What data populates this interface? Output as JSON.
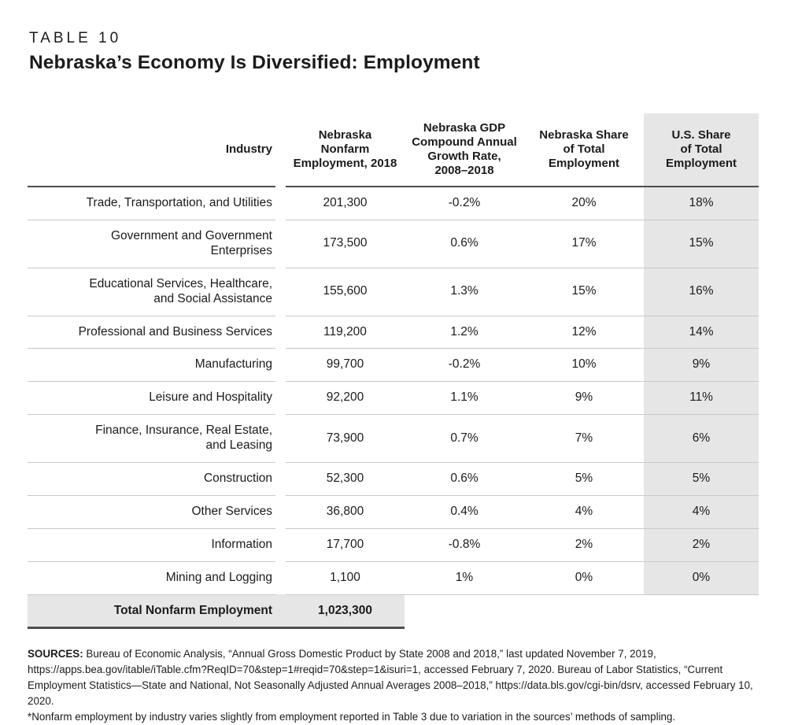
{
  "header": {
    "eyebrow": "TABLE 10",
    "title": "Nebraska’s Economy Is Diversified: Employment"
  },
  "table": {
    "columns": [
      "Industry",
      "Nebraska\nNonfarm\nEmployment, 2018",
      "Nebraska GDP\nCompound Annual\nGrowth Rate,\n2008–2018",
      "Nebraska Share\nof Total\nEmployment",
      "U.S. Share\nof Total\nEmployment"
    ],
    "rows": [
      {
        "industry": "Trade, Transportation, and Utilities",
        "employment": "201,300",
        "growth": "-0.2%",
        "ne_share": "20%",
        "us_share": "18%"
      },
      {
        "industry": "Government and Government\nEnterprises",
        "employment": "173,500",
        "growth": "0.6%",
        "ne_share": "17%",
        "us_share": "15%"
      },
      {
        "industry": "Educational Services, Healthcare,\nand Social Assistance",
        "employment": "155,600",
        "growth": "1.3%",
        "ne_share": "15%",
        "us_share": "16%"
      },
      {
        "industry": "Professional and Business Services",
        "employment": "119,200",
        "growth": "1.2%",
        "ne_share": "12%",
        "us_share": "14%"
      },
      {
        "industry": "Manufacturing",
        "employment": "99,700",
        "growth": "-0.2%",
        "ne_share": "10%",
        "us_share": "9%"
      },
      {
        "industry": "Leisure and Hospitality",
        "employment": "92,200",
        "growth": "1.1%",
        "ne_share": "9%",
        "us_share": "11%"
      },
      {
        "industry": "Finance, Insurance, Real Estate,\nand Leasing",
        "employment": "73,900",
        "growth": "0.7%",
        "ne_share": "7%",
        "us_share": "6%"
      },
      {
        "industry": "Construction",
        "employment": "52,300",
        "growth": "0.6%",
        "ne_share": "5%",
        "us_share": "5%"
      },
      {
        "industry": "Other Services",
        "employment": "36,800",
        "growth": "0.4%",
        "ne_share": "4%",
        "us_share": "4%"
      },
      {
        "industry": "Information",
        "employment": "17,700",
        "growth": "-0.8%",
        "ne_share": "2%",
        "us_share": "2%"
      },
      {
        "industry": "Mining and Logging",
        "employment": "1,100",
        "growth": "1%",
        "ne_share": "0%",
        "us_share": "0%"
      }
    ],
    "total": {
      "label": "Total Nonfarm Employment",
      "value": "1,023,300"
    }
  },
  "footer": {
    "sources_label": "SOURCES:",
    "sources_body": "Bureau of Economic Analysis, “Annual Gross Domestic Product by State 2008 and 2018,” last updated November 7, 2019, https://apps.bea.gov/itable/iTable.cfm?ReqID=70&step=1#reqid=70&step=1&isuri=1, accessed February 7, 2020. Bureau of Labor Statistics, “Current Employment Statistics—State and National, Not Seasonally Adjusted Annual Averages 2008–2018,” https://data.bls.gov/cgi-bin/dsrv, accessed February 10, 2020.",
    "footnote": "*Nonfarm employment by industry varies slightly from employment reported in Table 3 due to variation in the sources’ methods of sampling."
  },
  "colors": {
    "band_gray": "#e6e6e6",
    "rule_dark": "#4d4d4d",
    "rule_light": "#c9c9c9",
    "text": "#1b1b1b"
  }
}
